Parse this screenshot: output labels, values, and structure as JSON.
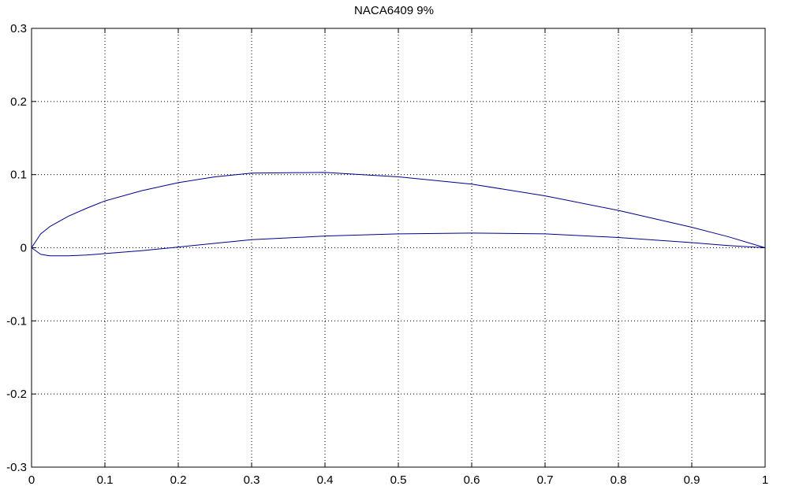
{
  "chart_data": {
    "type": "line",
    "title": "NACA6409 9%",
    "xlabel": "",
    "ylabel": "",
    "xlim": [
      0,
      1
    ],
    "ylim": [
      -0.3,
      0.3
    ],
    "grid": true,
    "x_ticks": [
      "0",
      "0.1",
      "0.2",
      "0.3",
      "0.4",
      "0.5",
      "0.6",
      "0.7",
      "0.8",
      "0.9",
      "1"
    ],
    "y_ticks": [
      "0.3",
      "0.2",
      "0.1",
      "0",
      "-0.1",
      "-0.2",
      "-0.3"
    ],
    "series": [
      {
        "color": "#00008b",
        "x": [
          1.0,
          0.95,
          0.9,
          0.8,
          0.7,
          0.6,
          0.5,
          0.4,
          0.3,
          0.25,
          0.2,
          0.15,
          0.1,
          0.075,
          0.05,
          0.025,
          0.0125,
          0.0,
          0.0125,
          0.025,
          0.05,
          0.075,
          0.1,
          0.15,
          0.2,
          0.25,
          0.3,
          0.4,
          0.5,
          0.6,
          0.7,
          0.8,
          0.9,
          0.95,
          1.0
        ],
        "y": [
          0.0,
          0.015,
          0.028,
          0.051,
          0.071,
          0.087,
          0.097,
          0.103,
          0.102,
          0.097,
          0.089,
          0.078,
          0.064,
          0.054,
          0.043,
          0.029,
          0.019,
          0.0,
          -0.009,
          -0.011,
          -0.011,
          -0.01,
          -0.008,
          -0.004,
          0.001,
          0.006,
          0.011,
          0.016,
          0.019,
          0.02,
          0.019,
          0.014,
          0.007,
          0.003,
          0.0
        ]
      }
    ]
  }
}
